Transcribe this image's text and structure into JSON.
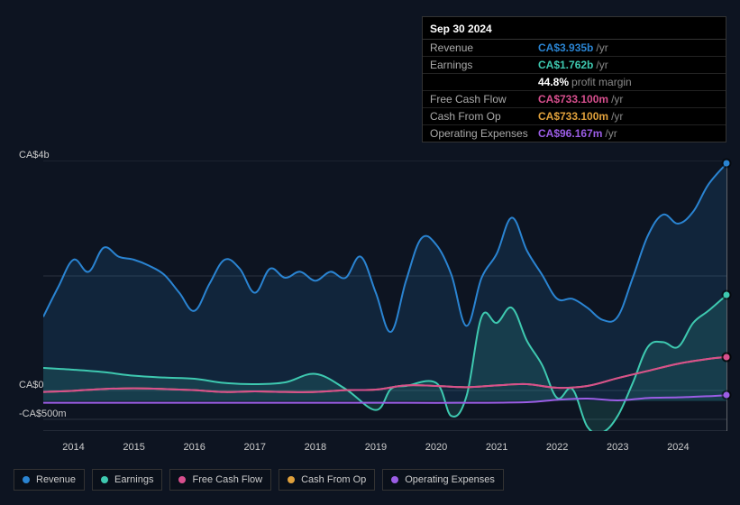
{
  "tooltip": {
    "date": "Sep 30 2024",
    "rows": [
      {
        "label": "Revenue",
        "value": "CA$3.935b",
        "unit": "/yr",
        "color": "#2a84d2"
      },
      {
        "label": "Earnings",
        "value": "CA$1.762b",
        "unit": "/yr",
        "color": "#3ec9b0"
      },
      {
        "label": "",
        "value": "44.8%",
        "unit": "profit margin",
        "color": "#ffffff",
        "pm": true
      },
      {
        "label": "Free Cash Flow",
        "value": "CA$733.100m",
        "unit": "/yr",
        "color": "#d84f8e"
      },
      {
        "label": "Cash From Op",
        "value": "CA$733.100m",
        "unit": "/yr",
        "color": "#e0a13c"
      },
      {
        "label": "Operating Expenses",
        "value": "CA$96.167m",
        "unit": "/yr",
        "color": "#9b5de5"
      }
    ]
  },
  "chart": {
    "y_labels": [
      {
        "text": "CA$4b",
        "y": 0
      },
      {
        "text": "CA$0",
        "y": 255
      },
      {
        "text": "-CA$500m",
        "y": 287
      }
    ],
    "x_labels": [
      "2014",
      "2015",
      "2016",
      "2017",
      "2018",
      "2019",
      "2020",
      "2021",
      "2022",
      "2023",
      "2024"
    ],
    "x_domain": [
      2013.5,
      2024.8
    ],
    "y_domain": [
      -500,
      4000
    ],
    "series": [
      {
        "name": "Revenue",
        "color": "#2a84d2",
        "fill": true,
        "pts": [
          [
            2013.5,
            1400
          ],
          [
            2013.75,
            1900
          ],
          [
            2014.0,
            2350
          ],
          [
            2014.25,
            2150
          ],
          [
            2014.5,
            2550
          ],
          [
            2014.75,
            2400
          ],
          [
            2015.0,
            2350
          ],
          [
            2015.25,
            2250
          ],
          [
            2015.5,
            2100
          ],
          [
            2015.75,
            1800
          ],
          [
            2016.0,
            1500
          ],
          [
            2016.25,
            1950
          ],
          [
            2016.5,
            2350
          ],
          [
            2016.75,
            2200
          ],
          [
            2017.0,
            1800
          ],
          [
            2017.25,
            2200
          ],
          [
            2017.5,
            2050
          ],
          [
            2017.75,
            2150
          ],
          [
            2018.0,
            2000
          ],
          [
            2018.25,
            2150
          ],
          [
            2018.5,
            2050
          ],
          [
            2018.75,
            2400
          ],
          [
            2019.0,
            1800
          ],
          [
            2019.25,
            1150
          ],
          [
            2019.5,
            2000
          ],
          [
            2019.75,
            2700
          ],
          [
            2020.0,
            2600
          ],
          [
            2020.25,
            2100
          ],
          [
            2020.5,
            1250
          ],
          [
            2020.75,
            2050
          ],
          [
            2021.0,
            2450
          ],
          [
            2021.25,
            3050
          ],
          [
            2021.5,
            2500
          ],
          [
            2021.75,
            2100
          ],
          [
            2022.0,
            1700
          ],
          [
            2022.25,
            1700
          ],
          [
            2022.5,
            1550
          ],
          [
            2022.75,
            1350
          ],
          [
            2023.0,
            1400
          ],
          [
            2023.25,
            2050
          ],
          [
            2023.5,
            2750
          ],
          [
            2023.75,
            3100
          ],
          [
            2024.0,
            2950
          ],
          [
            2024.25,
            3150
          ],
          [
            2024.5,
            3600
          ],
          [
            2024.8,
            3950
          ]
        ]
      },
      {
        "name": "Earnings",
        "color": "#3ec9b0",
        "fill": true,
        "pts": [
          [
            2013.5,
            550
          ],
          [
            2014.0,
            520
          ],
          [
            2014.5,
            480
          ],
          [
            2015.0,
            420
          ],
          [
            2015.5,
            390
          ],
          [
            2016.0,
            370
          ],
          [
            2016.5,
            300
          ],
          [
            2017.0,
            280
          ],
          [
            2017.5,
            310
          ],
          [
            2018.0,
            450
          ],
          [
            2018.5,
            200
          ],
          [
            2019.0,
            -150
          ],
          [
            2019.25,
            200
          ],
          [
            2019.5,
            250
          ],
          [
            2020.0,
            300
          ],
          [
            2020.25,
            -250
          ],
          [
            2020.5,
            80
          ],
          [
            2020.75,
            1400
          ],
          [
            2021.0,
            1300
          ],
          [
            2021.25,
            1550
          ],
          [
            2021.5,
            1000
          ],
          [
            2021.75,
            600
          ],
          [
            2022.0,
            50
          ],
          [
            2022.25,
            200
          ],
          [
            2022.5,
            -430
          ],
          [
            2022.75,
            -520
          ],
          [
            2023.0,
            -250
          ],
          [
            2023.25,
            300
          ],
          [
            2023.5,
            900
          ],
          [
            2023.75,
            980
          ],
          [
            2024.0,
            900
          ],
          [
            2024.25,
            1300
          ],
          [
            2024.5,
            1500
          ],
          [
            2024.8,
            1762
          ]
        ]
      },
      {
        "name": "Cash From Op",
        "color": "#e0a13c",
        "fill": false,
        "pts": [
          [
            2013.5,
            150
          ],
          [
            2014.0,
            170
          ],
          [
            2014.5,
            200
          ],
          [
            2015.0,
            210
          ],
          [
            2015.5,
            200
          ],
          [
            2016.0,
            180
          ],
          [
            2016.5,
            150
          ],
          [
            2017.0,
            160
          ],
          [
            2017.5,
            150
          ],
          [
            2018.0,
            150
          ],
          [
            2018.5,
            180
          ],
          [
            2019.0,
            190
          ],
          [
            2019.5,
            260
          ],
          [
            2020.0,
            250
          ],
          [
            2020.5,
            230
          ],
          [
            2021.0,
            260
          ],
          [
            2021.5,
            280
          ],
          [
            2022.0,
            220
          ],
          [
            2022.5,
            250
          ],
          [
            2023.0,
            380
          ],
          [
            2023.5,
            500
          ],
          [
            2024.0,
            620
          ],
          [
            2024.5,
            700
          ],
          [
            2024.8,
            733
          ]
        ]
      },
      {
        "name": "Free Cash Flow",
        "color": "#d84f8e",
        "fill": false,
        "pts": [
          [
            2013.5,
            150
          ],
          [
            2014.0,
            170
          ],
          [
            2014.5,
            200
          ],
          [
            2015.0,
            210
          ],
          [
            2015.5,
            200
          ],
          [
            2016.0,
            180
          ],
          [
            2016.5,
            150
          ],
          [
            2017.0,
            160
          ],
          [
            2017.5,
            150
          ],
          [
            2018.0,
            150
          ],
          [
            2018.5,
            180
          ],
          [
            2019.0,
            190
          ],
          [
            2019.5,
            260
          ],
          [
            2020.0,
            250
          ],
          [
            2020.5,
            230
          ],
          [
            2021.0,
            260
          ],
          [
            2021.5,
            280
          ],
          [
            2022.0,
            220
          ],
          [
            2022.5,
            250
          ],
          [
            2023.0,
            380
          ],
          [
            2023.5,
            500
          ],
          [
            2024.0,
            620
          ],
          [
            2024.5,
            700
          ],
          [
            2024.8,
            733
          ]
        ]
      },
      {
        "name": "Operating Expenses",
        "color": "#9b5de5",
        "fill": false,
        "pts": [
          [
            2013.5,
            -30
          ],
          [
            2014.5,
            -30
          ],
          [
            2015.5,
            -30
          ],
          [
            2016.5,
            -30
          ],
          [
            2017.5,
            -30
          ],
          [
            2018.5,
            -30
          ],
          [
            2019.5,
            -30
          ],
          [
            2020.5,
            -30
          ],
          [
            2021.5,
            -20
          ],
          [
            2022.0,
            20
          ],
          [
            2022.5,
            40
          ],
          [
            2023.0,
            10
          ],
          [
            2023.5,
            50
          ],
          [
            2024.0,
            60
          ],
          [
            2024.5,
            80
          ],
          [
            2024.8,
            96
          ]
        ]
      }
    ],
    "gridlines_y": [
      0,
      255,
      287,
      128
    ],
    "cursor_x": 2024.8,
    "markers": [
      {
        "color": "#2a84d2",
        "y": 3950
      },
      {
        "color": "#3ec9b0",
        "y": 1762
      },
      {
        "color": "#e0a13c",
        "y": 733
      },
      {
        "color": "#d84f8e",
        "y": 733
      },
      {
        "color": "#9b5de5",
        "y": 96
      }
    ]
  },
  "legend": [
    {
      "label": "Revenue",
      "color": "#2a84d2"
    },
    {
      "label": "Earnings",
      "color": "#3ec9b0"
    },
    {
      "label": "Free Cash Flow",
      "color": "#d84f8e"
    },
    {
      "label": "Cash From Op",
      "color": "#e0a13c"
    },
    {
      "label": "Operating Expenses",
      "color": "#9b5de5"
    }
  ]
}
